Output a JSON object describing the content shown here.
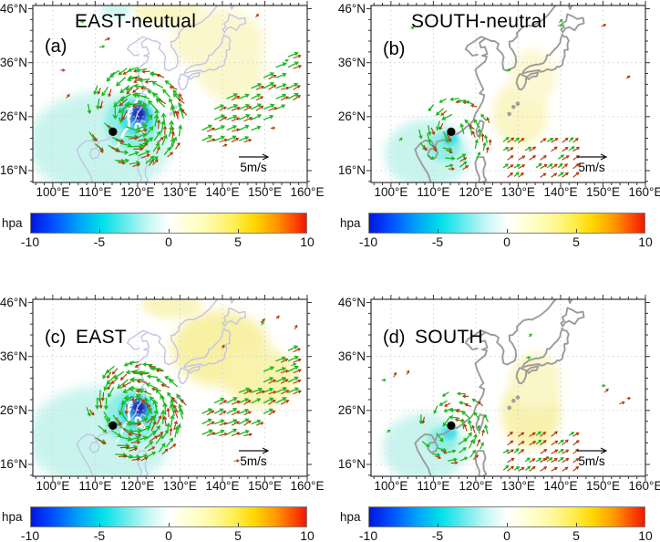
{
  "figure": {
    "colorbar": {
      "label": "hpa",
      "ticks": [
        "-10",
        "-5",
        "0",
        "5",
        "10"
      ]
    },
    "ref_arrow_label": "5m/s",
    "x_ticks": [
      "100°E",
      "110°E",
      "120°E",
      "130°E",
      "140°E",
      "150°E",
      "160°E"
    ],
    "y_ticks": [
      "46°N",
      "36°N",
      "26°N",
      "16°N"
    ]
  },
  "chart_data": {
    "type": "heatmap",
    "subtype": "2x2 geographic map panels: filled pressure-anomaly shading (hpa), wind-vector quiver (green/red arrows), white contour, black cyclone-position marker",
    "lon_range": [
      95.3,
      160
    ],
    "lat_range": [
      13.8,
      46.6
    ],
    "grid": "dotted graticule every 10 degrees",
    "colormap": {
      "units": "hpa",
      "range": [
        -10,
        10
      ],
      "ticks": [
        -10,
        -5,
        0,
        5,
        10
      ],
      "description": "blue (-10) through cyan to white (0) to yellow to red (+10)"
    },
    "vector_scale_label": "5m/s",
    "arrow_colors": {
      "green": "#1cb81c",
      "red": "#b33c10"
    },
    "panels": [
      {
        "letter": "(a)",
        "title": "EAST-neutual",
        "marker_lonlat": [
          114.2,
          23.2
        ],
        "contour_labels": [
          "-10",
          "0"
        ],
        "anomaly_low_center": [
          119.4,
          26.1
        ],
        "anomaly_low_min_hpa": -10,
        "coast_color": "#c2c4e6",
        "vectors": {
          "strength": "strong",
          "center": [
            119.4,
            26.1
          ],
          "jet": "ne"
        },
        "shading": [
          [
            111.0,
            21.0,
            17.0,
            9.5,
            "#c9f4ee",
            6
          ],
          [
            118.5,
            24.8,
            6.2,
            5.0,
            "#8feee6",
            3
          ],
          [
            119.6,
            25.8,
            4.0,
            3.2,
            "#49dfe9",
            2
          ],
          [
            120.1,
            26.3,
            2.4,
            2.0,
            "#2e86e0",
            2
          ],
          [
            120.3,
            26.5,
            1.4,
            1.1,
            "#1e2cb2",
            1.5
          ],
          [
            115.0,
            46.0,
            3.5,
            2.0,
            "#d2f5f0",
            4
          ],
          [
            127.0,
            45.5,
            8.0,
            2.5,
            "#faf6c6",
            4
          ],
          [
            139.0,
            40.0,
            11.0,
            6.0,
            "#fbf7cc",
            6
          ],
          [
            142.0,
            34.5,
            8.0,
            5.5,
            "#fbf7cc",
            6
          ]
        ]
      },
      {
        "letter": "(b)",
        "title": "SOUTH-neutral",
        "marker_lonlat": [
          114.2,
          23.2
        ],
        "contour_labels": [],
        "anomaly_low_center": [
          114.0,
          21.9
        ],
        "anomaly_low_min_hpa": -4,
        "coast_color": "#9b9b9b",
        "vectors": {
          "strength": "weak",
          "center": [
            114.8,
            23.0
          ],
          "jet": "se"
        },
        "shading": [
          [
            108.5,
            19.0,
            10.0,
            6.5,
            "#c9f4ee",
            5
          ],
          [
            112.5,
            20.5,
            4.0,
            2.8,
            "#8feee6",
            3
          ],
          [
            114.0,
            21.9,
            1.8,
            1.3,
            "#49dfe9",
            2
          ],
          [
            130.5,
            26.5,
            6.5,
            6.0,
            "#fbf6c4",
            5
          ],
          [
            133.5,
            33.5,
            5.5,
            5.0,
            "#fcf8d2",
            5
          ]
        ]
      },
      {
        "letter": "(c)",
        "title": "EAST",
        "marker_lonlat": [
          114.2,
          23.2
        ],
        "contour_labels": [
          "-10",
          "0"
        ],
        "anomaly_low_center": [
          119.4,
          26.1
        ],
        "anomaly_low_min_hpa": -10,
        "coast_color": "#c2c4e6",
        "vectors": {
          "strength": "strong",
          "center": [
            119.4,
            26.1
          ],
          "jet": "ne"
        },
        "shading": [
          [
            111.0,
            21.0,
            17.0,
            9.5,
            "#c9f4ee",
            6
          ],
          [
            118.5,
            24.8,
            6.2,
            5.0,
            "#8feee6",
            3
          ],
          [
            119.6,
            25.8,
            4.0,
            3.2,
            "#49dfe9",
            2
          ],
          [
            120.1,
            26.3,
            2.4,
            2.0,
            "#2e86e0",
            2
          ],
          [
            120.3,
            26.5,
            1.4,
            1.1,
            "#1e2cb2",
            1.5
          ],
          [
            128.0,
            45.5,
            7.0,
            2.5,
            "#faf5c0",
            4
          ],
          [
            139.5,
            37.5,
            11.5,
            7.0,
            "#f8f1a4",
            6
          ],
          [
            149.0,
            32.0,
            8.5,
            5.5,
            "#f9f3ae",
            6
          ]
        ]
      },
      {
        "letter": "(d)",
        "title": "SOUTH",
        "marker_lonlat": [
          114.2,
          23.2
        ],
        "contour_labels": [],
        "anomaly_low_center": [
          113.8,
          21.8
        ],
        "anomaly_low_min_hpa": -4,
        "coast_color": "#9b9b9b",
        "vectors": {
          "strength": "weak",
          "center": [
            114.8,
            23.0
          ],
          "jet": "se"
        },
        "shading": [
          [
            108.0,
            19.0,
            10.0,
            6.5,
            "#c9f4ee",
            5
          ],
          [
            112.0,
            20.5,
            3.5,
            2.5,
            "#8feee6",
            3
          ],
          [
            113.8,
            21.8,
            1.7,
            1.2,
            "#49dfe9",
            2
          ],
          [
            133.0,
            25.5,
            7.0,
            6.5,
            "#f8f2ae",
            5
          ],
          [
            134.0,
            31.5,
            6.0,
            5.2,
            "#fbf6c8",
            5
          ]
        ]
      }
    ]
  }
}
